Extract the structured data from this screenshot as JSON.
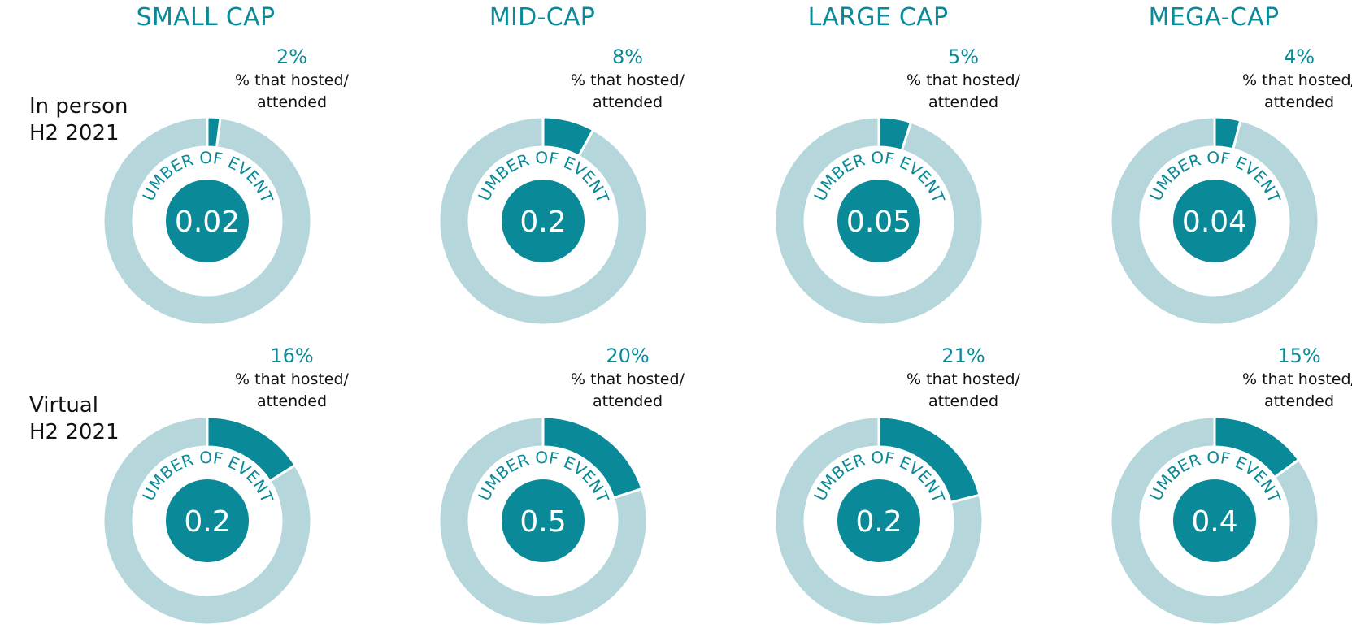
{
  "colors": {
    "accent": "#0a8a98",
    "ring": "#b5d7dc",
    "inner_fill": "#ffffff",
    "center_text": "#ffffff",
    "label_text": "#111111"
  },
  "row_labels": [
    "In person\nH2 2021",
    "Virtual\nH2 2021"
  ],
  "column_titles": [
    "SMALL CAP",
    "MID-CAP",
    "LARGE CAP",
    "MEGA-CAP"
  ],
  "caption": "% that hosted/\nattended",
  "arc_label": "NUMBER OF EVENTS",
  "chart_data": {
    "type": "donut",
    "panels": [
      {
        "row": "In person\nH2 2021",
        "column": "SMALL CAP",
        "percent": 2,
        "percent_label": "2%",
        "events": 0.02,
        "events_label": "0.02"
      },
      {
        "row": "In person\nH2 2021",
        "column": "MID-CAP",
        "percent": 8,
        "percent_label": "8%",
        "events": 0.2,
        "events_label": "0.2"
      },
      {
        "row": "In person\nH2 2021",
        "column": "LARGE CAP",
        "percent": 5,
        "percent_label": "5%",
        "events": 0.05,
        "events_label": "0.05"
      },
      {
        "row": "In person\nH2 2021",
        "column": "MEGA-CAP",
        "percent": 4,
        "percent_label": "4%",
        "events": 0.04,
        "events_label": "0.04"
      },
      {
        "row": "Virtual\nH2 2021",
        "column": "SMALL CAP",
        "percent": 16,
        "percent_label": "16%",
        "events": 0.2,
        "events_label": "0.2"
      },
      {
        "row": "Virtual\nH2 2021",
        "column": "MID-CAP",
        "percent": 20,
        "percent_label": "20%",
        "events": 0.5,
        "events_label": "0.5"
      },
      {
        "row": "Virtual\nH2 2021",
        "column": "LARGE CAP",
        "percent": 21,
        "percent_label": "21%",
        "events": 0.2,
        "events_label": "0.2"
      },
      {
        "row": "Virtual\nH2 2021",
        "column": "MEGA-CAP",
        "percent": 15,
        "percent_label": "15%",
        "events": 0.4,
        "events_label": "0.4"
      }
    ]
  }
}
